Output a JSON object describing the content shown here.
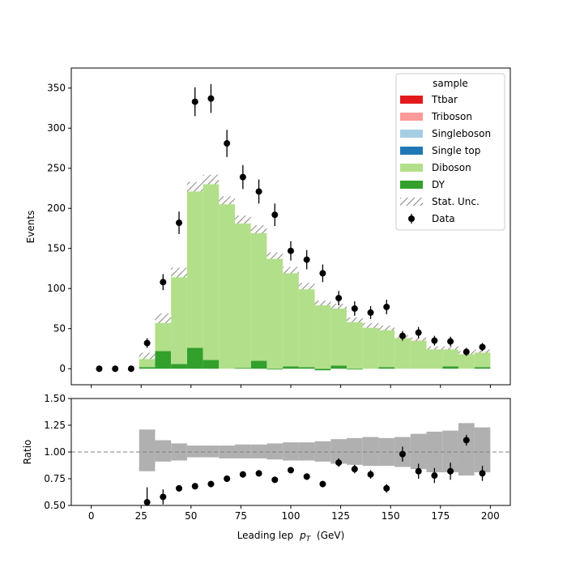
{
  "chart_data": {
    "type": "bar",
    "stacked": true,
    "x_axis": {
      "label": "Leading lep",
      "label_math_symbol": "p",
      "label_math_subscript": "T",
      "label_unit": "(GeV)",
      "range": [
        -10,
        210
      ],
      "ticks": [
        0,
        25,
        50,
        75,
        100,
        125,
        150,
        175,
        200
      ]
    },
    "main_panel": {
      "ylabel": "Events",
      "ylim": [
        -20,
        375
      ],
      "yticks": [
        0,
        50,
        100,
        150,
        200,
        250,
        300,
        350
      ],
      "bin_edges": [
        24,
        32,
        40,
        48,
        56,
        64,
        72,
        80,
        88,
        96,
        104,
        112,
        120,
        128,
        136,
        144,
        152,
        160,
        168,
        176,
        184,
        192,
        200
      ],
      "series": [
        {
          "name": "DY",
          "color": "#33a02c",
          "values": [
            2,
            22,
            6,
            26,
            11,
            0,
            1,
            10,
            -1,
            3,
            2,
            -2,
            4,
            -1,
            0,
            2,
            0,
            0,
            0,
            3,
            0,
            2
          ]
        },
        {
          "name": "Diboson",
          "color": "#b2df8a",
          "values": [
            14,
            41,
            113,
            199,
            222,
            208,
            183,
            163,
            141,
            118,
            100,
            83,
            73,
            61,
            53,
            48,
            39,
            35,
            25,
            22,
            19,
            18
          ]
        },
        {
          "name": "Single top",
          "color": "#1f78b4",
          "values": [
            0,
            0,
            0,
            0,
            0,
            0,
            0,
            0,
            0,
            0,
            0,
            0,
            0,
            0,
            0,
            0,
            0,
            0,
            0,
            0,
            0,
            0
          ]
        },
        {
          "name": "Singleboson",
          "color": "#a6cee3",
          "values": [
            0,
            0,
            0,
            0,
            0,
            0,
            0,
            0,
            0,
            0,
            0,
            0,
            0,
            0,
            0,
            0,
            0,
            0,
            0,
            0,
            0,
            0
          ]
        },
        {
          "name": "Triboson",
          "color": "#fb9a99",
          "values": [
            0,
            0,
            1,
            2,
            3,
            2,
            2,
            1,
            1,
            2,
            1,
            1,
            1,
            1,
            1,
            1,
            1,
            1,
            1,
            1,
            1,
            1
          ]
        },
        {
          "name": "Ttbar",
          "color": "#e31a1c",
          "values": [
            0,
            0,
            0,
            0,
            0,
            0,
            0,
            0,
            0,
            0,
            0,
            0,
            0,
            0,
            0,
            0,
            0,
            1,
            0,
            0,
            0,
            1
          ]
        }
      ],
      "stat_unc": [
        4,
        6,
        6,
        6,
        6,
        5,
        5,
        5,
        4,
        4,
        4,
        3,
        3,
        3,
        3,
        3,
        2,
        2,
        2,
        2,
        2,
        2
      ],
      "data": {
        "name": "Data",
        "color": "#000000",
        "points": [
          {
            "x": 4,
            "y": 0,
            "err": 0
          },
          {
            "x": 12,
            "y": 0,
            "err": 0
          },
          {
            "x": 20,
            "y": 0,
            "err": 0
          },
          {
            "x": 28,
            "y": 32,
            "err": 6
          },
          {
            "x": 36,
            "y": 108,
            "err": 10
          },
          {
            "x": 44,
            "y": 182,
            "err": 14
          },
          {
            "x": 52,
            "y": 333,
            "err": 18
          },
          {
            "x": 60,
            "y": 337,
            "err": 18
          },
          {
            "x": 68,
            "y": 281,
            "err": 17
          },
          {
            "x": 76,
            "y": 239,
            "err": 15
          },
          {
            "x": 84,
            "y": 221,
            "err": 15
          },
          {
            "x": 92,
            "y": 192,
            "err": 14
          },
          {
            "x": 100,
            "y": 147,
            "err": 12
          },
          {
            "x": 108,
            "y": 136,
            "err": 12
          },
          {
            "x": 116,
            "y": 119,
            "err": 11
          },
          {
            "x": 124,
            "y": 88,
            "err": 9
          },
          {
            "x": 132,
            "y": 75,
            "err": 9
          },
          {
            "x": 140,
            "y": 70,
            "err": 8
          },
          {
            "x": 148,
            "y": 77,
            "err": 9
          },
          {
            "x": 156,
            "y": 41,
            "err": 6
          },
          {
            "x": 164,
            "y": 45,
            "err": 7
          },
          {
            "x": 172,
            "y": 35,
            "err": 6
          },
          {
            "x": 180,
            "y": 34,
            "err": 6
          },
          {
            "x": 188,
            "y": 21,
            "err": 5
          },
          {
            "x": 196,
            "y": 27,
            "err": 5
          }
        ]
      },
      "legend": {
        "title": "sample",
        "placement": "top-right",
        "entries": [
          "Ttbar",
          "Triboson",
          "Singleboson",
          "Single top",
          "Diboson",
          "DY",
          "Stat. Unc.",
          "Data"
        ]
      }
    },
    "ratio_panel": {
      "ylabel": "Ratio",
      "ylim": [
        0.5,
        1.5
      ],
      "yticks": [
        "0.50",
        "0.75",
        "1.00",
        "1.25",
        "1.50"
      ],
      "reference_line": 1.0,
      "unc_band": [
        {
          "lo": 0.82,
          "hi": 1.21
        },
        {
          "lo": 0.91,
          "hi": 1.11
        },
        {
          "lo": 0.92,
          "hi": 1.08
        },
        {
          "lo": 0.95,
          "hi": 1.06
        },
        {
          "lo": 0.95,
          "hi": 1.06
        },
        {
          "lo": 0.94,
          "hi": 1.06
        },
        {
          "lo": 0.94,
          "hi": 1.07
        },
        {
          "lo": 0.94,
          "hi": 1.07
        },
        {
          "lo": 0.93,
          "hi": 1.08
        },
        {
          "lo": 0.92,
          "hi": 1.09
        },
        {
          "lo": 0.92,
          "hi": 1.09
        },
        {
          "lo": 0.91,
          "hi": 1.1
        },
        {
          "lo": 0.89,
          "hi": 1.12
        },
        {
          "lo": 0.88,
          "hi": 1.13
        },
        {
          "lo": 0.87,
          "hi": 1.14
        },
        {
          "lo": 0.87,
          "hi": 1.13
        },
        {
          "lo": 0.86,
          "hi": 1.14
        },
        {
          "lo": 0.84,
          "hi": 1.17
        },
        {
          "lo": 0.81,
          "hi": 1.19
        },
        {
          "lo": 0.81,
          "hi": 1.2
        },
        {
          "lo": 0.78,
          "hi": 1.27
        },
        {
          "lo": 0.81,
          "hi": 1.23
        }
      ],
      "points": [
        {
          "x": 28,
          "y": 0.53,
          "err": 0.14
        },
        {
          "x": 36,
          "y": 0.58,
          "err": 0.07
        },
        {
          "x": 44,
          "y": 0.66,
          "err": 0.03
        },
        {
          "x": 52,
          "y": 0.68,
          "err": 0.03
        },
        {
          "x": 60,
          "y": 0.7,
          "err": 0.03
        },
        {
          "x": 68,
          "y": 0.75,
          "err": 0.03
        },
        {
          "x": 76,
          "y": 0.79,
          "err": 0.03
        },
        {
          "x": 84,
          "y": 0.8,
          "err": 0.03
        },
        {
          "x": 92,
          "y": 0.74,
          "err": 0.03
        },
        {
          "x": 100,
          "y": 0.83,
          "err": 0.03
        },
        {
          "x": 108,
          "y": 0.77,
          "err": 0.03
        },
        {
          "x": 116,
          "y": 0.7,
          "err": 0.03
        },
        {
          "x": 124,
          "y": 0.9,
          "err": 0.04
        },
        {
          "x": 132,
          "y": 0.84,
          "err": 0.04
        },
        {
          "x": 140,
          "y": 0.79,
          "err": 0.04
        },
        {
          "x": 148,
          "y": 0.66,
          "err": 0.04
        },
        {
          "x": 156,
          "y": 0.98,
          "err": 0.07
        },
        {
          "x": 164,
          "y": 0.82,
          "err": 0.07
        },
        {
          "x": 172,
          "y": 0.78,
          "err": 0.07
        },
        {
          "x": 180,
          "y": 0.82,
          "err": 0.08
        },
        {
          "x": 188,
          "y": 1.11,
          "err": 0.05
        },
        {
          "x": 196,
          "y": 0.8,
          "err": 0.07
        }
      ]
    }
  }
}
